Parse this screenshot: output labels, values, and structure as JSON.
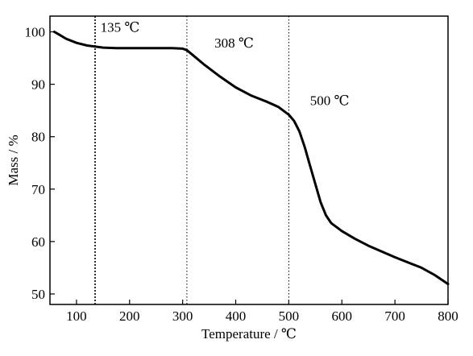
{
  "chart_data": {
    "type": "line",
    "xlabel": "Temperature / ℃",
    "ylabel": "Mass / %",
    "xlim": [
      50,
      800
    ],
    "ylim": [
      48,
      103
    ],
    "xticks": [
      100,
      200,
      300,
      400,
      500,
      600,
      700,
      800
    ],
    "yticks": [
      50,
      60,
      70,
      80,
      90,
      100
    ],
    "grid": false,
    "series": [
      {
        "color": "#000000",
        "x": [
          58,
          65,
          80,
          100,
          120,
          135,
          150,
          175,
          200,
          250,
          280,
          300,
          308,
          320,
          340,
          370,
          400,
          430,
          460,
          480,
          500,
          510,
          520,
          530,
          540,
          550,
          560,
          570,
          580,
          600,
          625,
          650,
          700,
          750,
          775,
          800
        ],
        "y": [
          100,
          99.6,
          98.7,
          97.9,
          97.4,
          97.2,
          97.0,
          96.9,
          96.9,
          96.9,
          96.9,
          96.8,
          96.5,
          95.5,
          93.8,
          91.5,
          89.4,
          87.8,
          86.6,
          85.7,
          84.2,
          83.0,
          81.0,
          78.0,
          74.5,
          71.0,
          67.5,
          65.0,
          63.5,
          62.0,
          60.5,
          59.2,
          57.0,
          55.0,
          53.6,
          51.9
        ]
      }
    ],
    "vlines": [
      135,
      308,
      500
    ],
    "annotations": [
      {
        "text": "135 ℃",
        "x": 145,
        "y": 100
      },
      {
        "text": "308 ℃",
        "x": 360,
        "y": 97
      },
      {
        "text": "500 ℃",
        "x": 540,
        "y": 86
      }
    ]
  }
}
